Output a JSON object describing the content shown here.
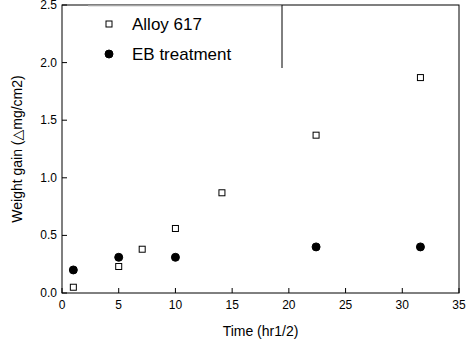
{
  "chart_data": {
    "type": "scatter",
    "xlabel": "Time (hr1/2)",
    "ylabel": "Weight gain (△mg/cm2)",
    "xlim": [
      0,
      35
    ],
    "xticks": [
      0,
      5,
      10,
      15,
      20,
      25,
      30,
      35
    ],
    "ylim": [
      0,
      2.5
    ],
    "yticks": [
      {
        "value": 0,
        "label": "0.0"
      },
      0.5,
      {
        "value": 1,
        "label": "1.0"
      },
      1.5,
      {
        "value": 2,
        "label": "2.0"
      },
      2.5
    ],
    "legend": "upper left",
    "series": [
      {
        "name": "Alloy 617",
        "color": "#000000",
        "marker": "open-square",
        "x": [
          1,
          5,
          7.07,
          10,
          14.1,
          22.4,
          31.6
        ],
        "values": [
          0.05,
          0.23,
          0.38,
          0.56,
          0.87,
          1.37,
          1.87
        ]
      },
      {
        "name": "EB treatment",
        "color": "#000000",
        "marker": "circle",
        "x": [
          1,
          5,
          10,
          22.4,
          31.6
        ],
        "values": [
          0.2,
          0.31,
          0.31,
          0.4,
          0.4
        ]
      }
    ]
  }
}
